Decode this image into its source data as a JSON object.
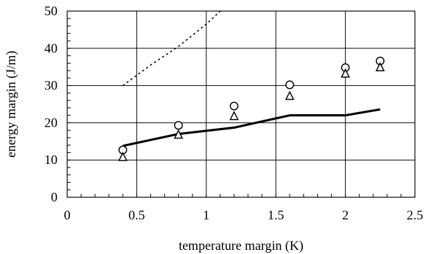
{
  "chart_data": {
    "type": "line",
    "title": "",
    "xlabel": "temperature margin (K)",
    "ylabel": "energy margin (J/m)",
    "xlim": [
      0,
      2.5
    ],
    "ylim": [
      0,
      50
    ],
    "x_ticks": [
      "0",
      "0.5",
      "1",
      "1.5",
      "2",
      "2.5"
    ],
    "y_ticks": [
      "0",
      "10",
      "20",
      "30",
      "40",
      "50"
    ],
    "grid": true,
    "legend": "none",
    "series": [
      {
        "style": "solid-thick",
        "points": [
          [
            0.4,
            13.8
          ],
          [
            0.8,
            17.0
          ],
          [
            1.2,
            18.7
          ],
          [
            1.6,
            22.0
          ],
          [
            2.0,
            22.0
          ],
          [
            2.25,
            23.6
          ]
        ]
      },
      {
        "style": "dotted",
        "points": [
          [
            0.4,
            30.0
          ],
          [
            0.6,
            35.5
          ],
          [
            0.8,
            40.5
          ],
          [
            1.0,
            46.5
          ],
          [
            1.13,
            51.0
          ]
        ]
      },
      {
        "style": "marker-circle",
        "points": [
          [
            0.4,
            12.7
          ],
          [
            0.8,
            19.3
          ],
          [
            1.2,
            24.5
          ],
          [
            1.6,
            30.2
          ],
          [
            2.0,
            34.8
          ],
          [
            2.25,
            36.6
          ]
        ]
      },
      {
        "style": "marker-triangle",
        "points": [
          [
            0.4,
            10.8
          ],
          [
            0.8,
            16.8
          ],
          [
            1.2,
            21.8
          ],
          [
            1.6,
            27.2
          ],
          [
            2.0,
            33.2
          ],
          [
            2.25,
            34.9
          ]
        ]
      }
    ]
  }
}
